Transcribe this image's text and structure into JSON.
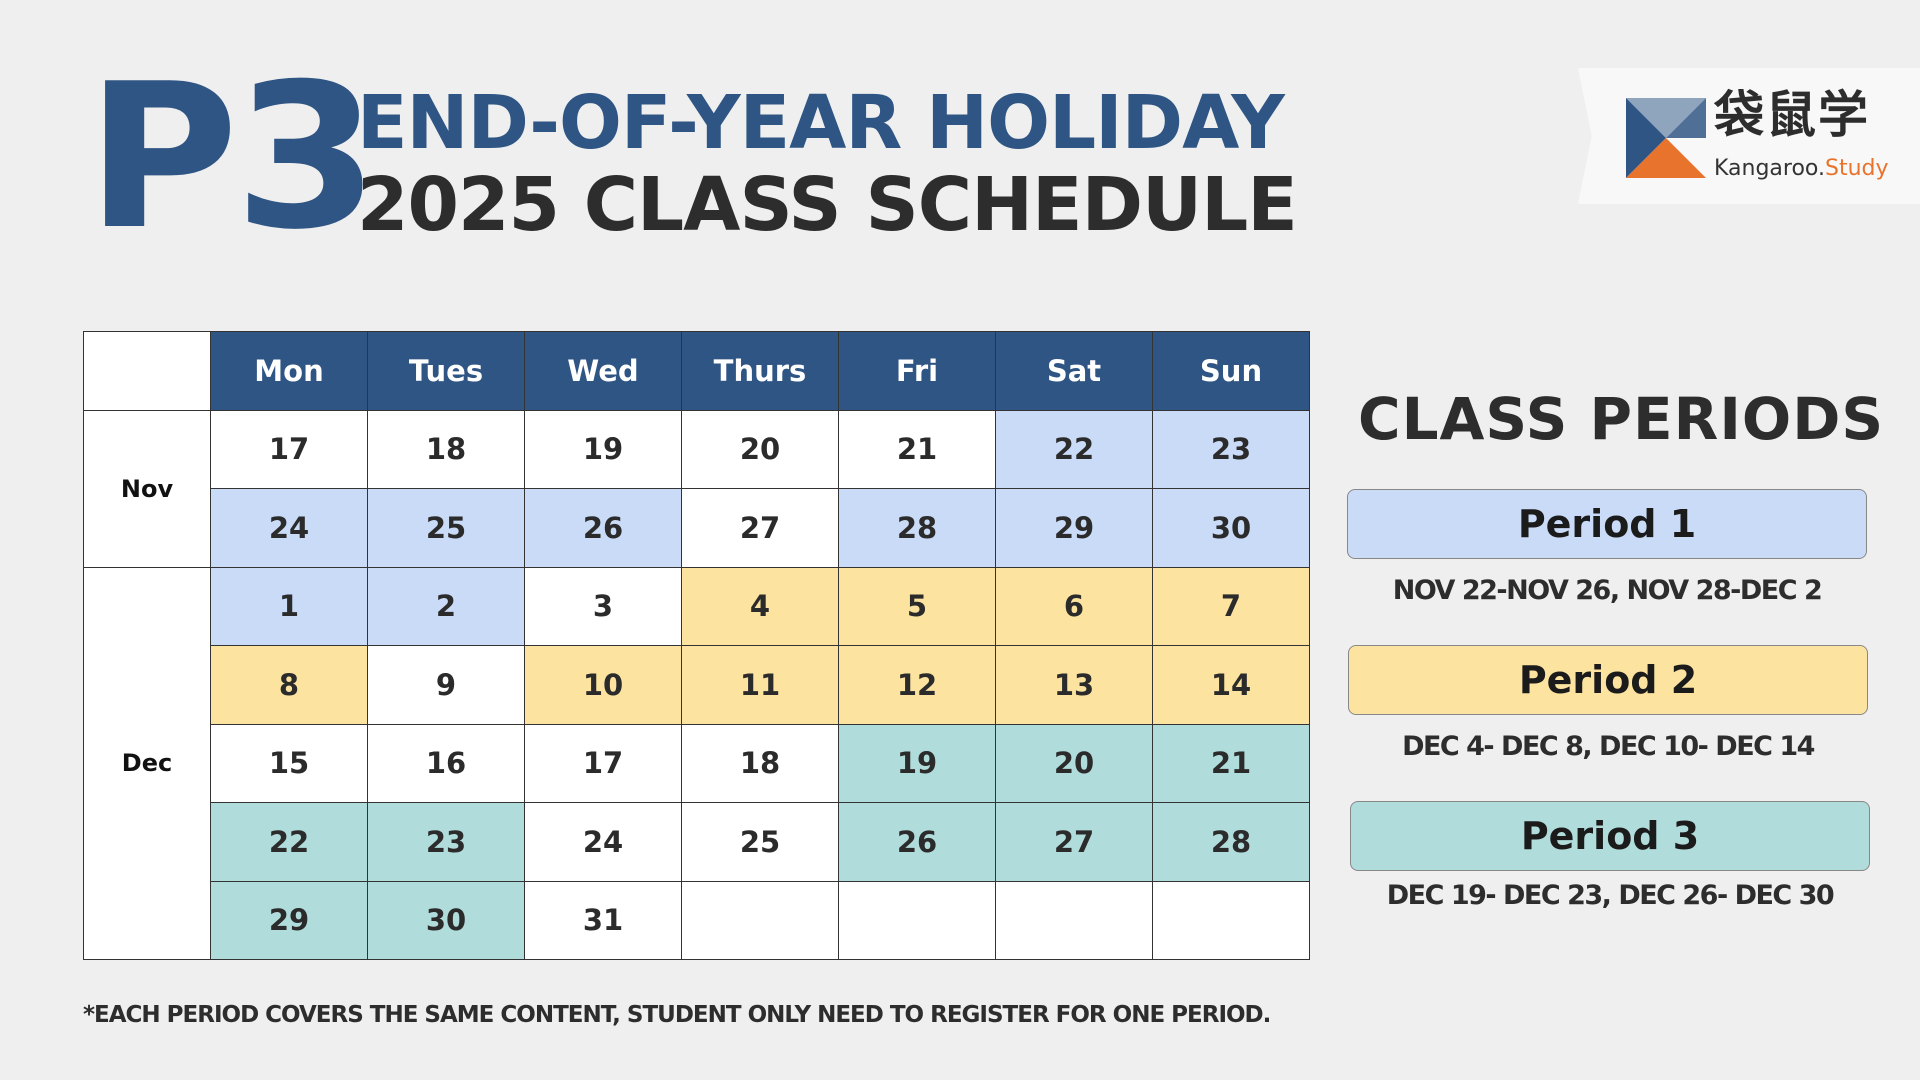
{
  "header": {
    "grade": "P3",
    "title_line1": "END-OF-YEAR HOLIDAY",
    "title_line2": "2025 CLASS SCHEDULE"
  },
  "logo": {
    "chinese_name": "袋鼠学",
    "english_prefix": "Kangaroo.",
    "english_suffix": "Study",
    "colors": {
      "blue": "#2f5584",
      "orange": "#e8732d"
    }
  },
  "calendar": {
    "weekdays": [
      "Mon",
      "Tues",
      "Wed",
      "Thurs",
      "Fri",
      "Sat",
      "Sun"
    ],
    "months": [
      {
        "label": "Nov",
        "weeks": [
          [
            {
              "d": "17",
              "p": "w"
            },
            {
              "d": "18",
              "p": "w"
            },
            {
              "d": "19",
              "p": "w"
            },
            {
              "d": "20",
              "p": "w"
            },
            {
              "d": "21",
              "p": "w"
            },
            {
              "d": "22",
              "p": "p1"
            },
            {
              "d": "23",
              "p": "p1"
            }
          ],
          [
            {
              "d": "24",
              "p": "p1"
            },
            {
              "d": "25",
              "p": "p1"
            },
            {
              "d": "26",
              "p": "p1"
            },
            {
              "d": "27",
              "p": "w"
            },
            {
              "d": "28",
              "p": "p1"
            },
            {
              "d": "29",
              "p": "p1"
            },
            {
              "d": "30",
              "p": "p1"
            }
          ]
        ]
      },
      {
        "label": "Dec",
        "weeks": [
          [
            {
              "d": "1",
              "p": "p1"
            },
            {
              "d": "2",
              "p": "p1"
            },
            {
              "d": "3",
              "p": "w"
            },
            {
              "d": "4",
              "p": "p2"
            },
            {
              "d": "5",
              "p": "p2"
            },
            {
              "d": "6",
              "p": "p2"
            },
            {
              "d": "7",
              "p": "p2"
            }
          ],
          [
            {
              "d": "8",
              "p": "p2"
            },
            {
              "d": "9",
              "p": "w"
            },
            {
              "d": "10",
              "p": "p2"
            },
            {
              "d": "11",
              "p": "p2"
            },
            {
              "d": "12",
              "p": "p2"
            },
            {
              "d": "13",
              "p": "p2"
            },
            {
              "d": "14",
              "p": "p2"
            }
          ],
          [
            {
              "d": "15",
              "p": "w"
            },
            {
              "d": "16",
              "p": "w"
            },
            {
              "d": "17",
              "p": "w"
            },
            {
              "d": "18",
              "p": "w"
            },
            {
              "d": "19",
              "p": "p3"
            },
            {
              "d": "20",
              "p": "p3"
            },
            {
              "d": "21",
              "p": "p3"
            }
          ],
          [
            {
              "d": "22",
              "p": "p3"
            },
            {
              "d": "23",
              "p": "p3"
            },
            {
              "d": "24",
              "p": "w"
            },
            {
              "d": "25",
              "p": "w"
            },
            {
              "d": "26",
              "p": "p3"
            },
            {
              "d": "27",
              "p": "p3"
            },
            {
              "d": "28",
              "p": "p3"
            }
          ],
          [
            {
              "d": "29",
              "p": "p3"
            },
            {
              "d": "30",
              "p": "p3"
            },
            {
              "d": "31",
              "p": "w"
            },
            {
              "d": "",
              "p": "blank"
            },
            {
              "d": "",
              "p": "blank"
            },
            {
              "d": "",
              "p": "blank"
            },
            {
              "d": "",
              "p": "blank"
            }
          ]
        ]
      }
    ],
    "colors": {
      "header": "#2f5584",
      "period1": "#c9dbf7",
      "period2": "#fce4a0",
      "period3": "#b1dcdc"
    }
  },
  "class_periods": {
    "title": "CLASS PERIODS",
    "items": [
      {
        "label": "Period 1",
        "dates": "NOV 22-NOV 26, NOV 28-DEC 2"
      },
      {
        "label": "Period 2",
        "dates": "DEC 4- DEC 8, DEC 10- DEC 14"
      },
      {
        "label": "Period 3",
        "dates": "DEC 19- DEC 23, DEC 26- DEC 30"
      }
    ]
  },
  "footnote": "*EACH PERIOD COVERS THE SAME  CONTENT, STUDENT ONLY NEED TO REGISTER FOR ONE PERIOD."
}
